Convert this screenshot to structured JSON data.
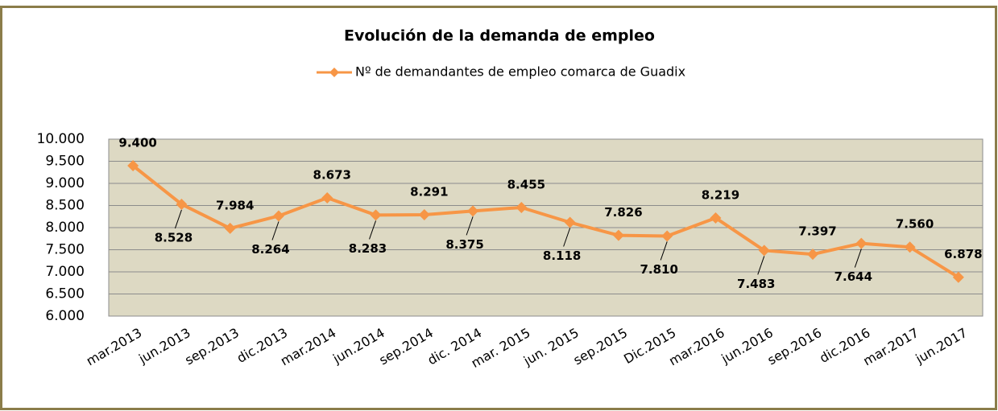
{
  "chart_data": {
    "type": "line",
    "title": "Evolución de la demanda de empleo",
    "categories": [
      "mar.2013",
      "jun.2013",
      "sep.2013",
      "dic.2013",
      "mar.2014",
      "jun.2014",
      "sep.2014",
      "dic. 2014",
      "mar. 2015",
      "jun. 2015",
      "sep.2015",
      "Dic.2015",
      "mar.2016",
      "jun.2016",
      "sep.2016",
      "dic.2016",
      "mar.2017",
      "jun.2017"
    ],
    "series": [
      {
        "name": "Nº de demandantes de empleo comarca de Guadix",
        "color": "#f79646",
        "values": [
          9400,
          8528,
          7984,
          8264,
          8673,
          8283,
          8291,
          8375,
          8455,
          8118,
          7826,
          7810,
          8219,
          7483,
          7397,
          7644,
          7560,
          6878
        ],
        "value_labels": [
          "9.400",
          "8.528",
          "7.984",
          "8.264",
          "8.673",
          "8.283",
          "8.291",
          "8.375",
          "8.455",
          "8.118",
          "7.826",
          "7.810",
          "8.219",
          "7.483",
          "7.397",
          "7.644",
          "7.560",
          "6.878"
        ]
      }
    ],
    "ylim": [
      6000,
      10000
    ],
    "yticks": [
      {
        "value": 6000,
        "label": "6.000"
      },
      {
        "value": 6500,
        "label": "6.500"
      },
      {
        "value": 7000,
        "label": "7.000"
      },
      {
        "value": 7500,
        "label": "7.500"
      },
      {
        "value": 8000,
        "label": "8.000"
      },
      {
        "value": 8500,
        "label": "8.500"
      },
      {
        "value": 9000,
        "label": "9.000"
      },
      {
        "value": 9500,
        "label": "9.500"
      },
      {
        "value": 10000,
        "label": "10.000"
      }
    ],
    "grid": true,
    "legend": "top"
  }
}
